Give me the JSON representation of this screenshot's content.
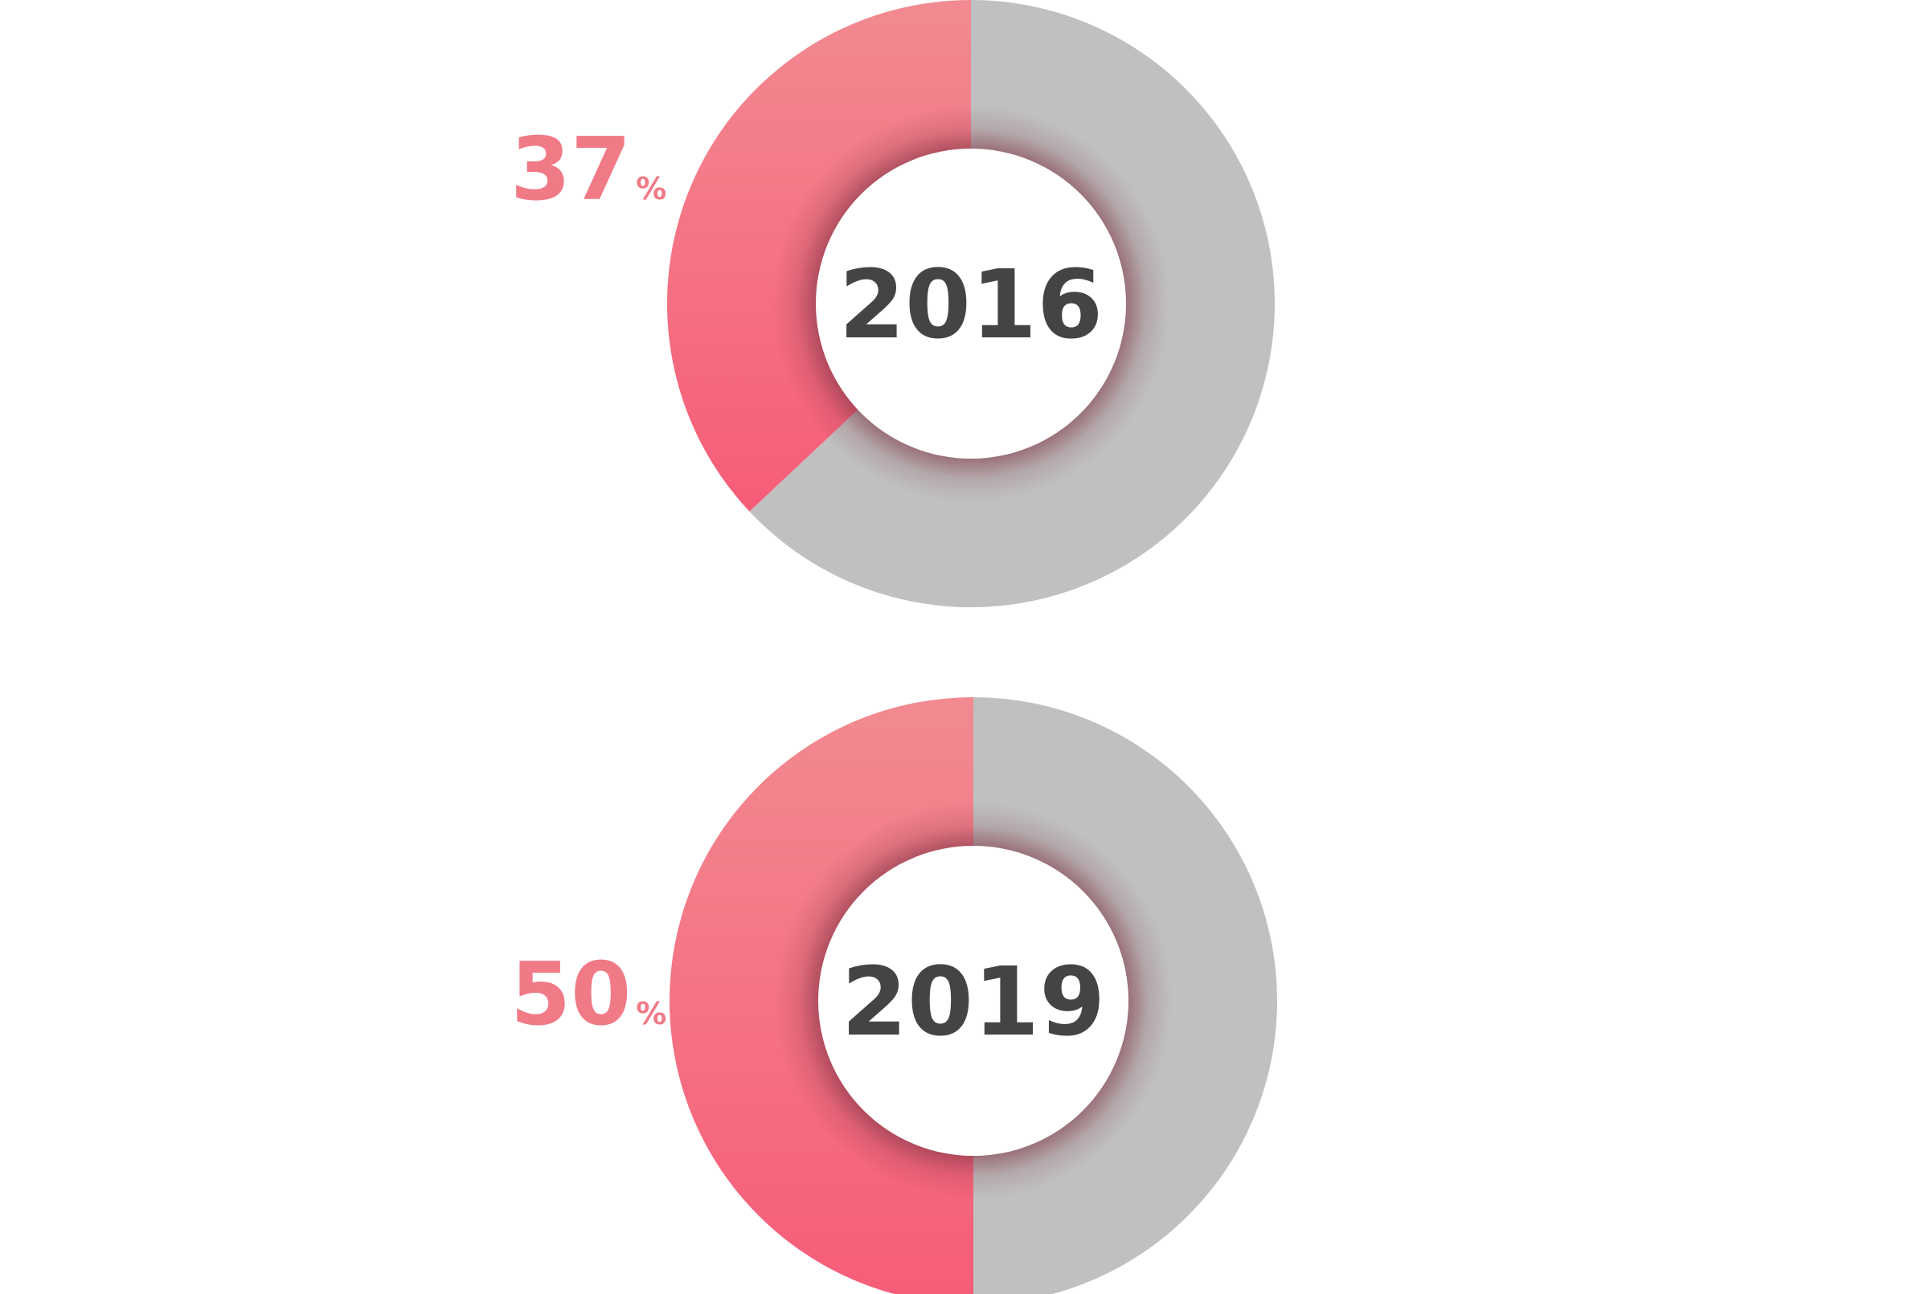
{
  "chart_data": [
    {
      "type": "pie",
      "center_label": "2016",
      "value_label": "37",
      "value_suffix": "%",
      "slices": [
        {
          "value": 37,
          "color": "#f7607a",
          "gradient_light": "#f28a91",
          "gradient_dark": "#f75c78"
        },
        {
          "value": 63,
          "color": "#c0c0c0"
        }
      ]
    },
    {
      "type": "pie",
      "center_label": "2019",
      "value_label": "50",
      "value_suffix": "%",
      "slices": [
        {
          "value": 50,
          "color": "#f7607a",
          "gradient_light": "#f28a91",
          "gradient_dark": "#f75c78"
        },
        {
          "value": 50,
          "color": "#c0c0c0"
        }
      ]
    }
  ],
  "colors": {
    "accent": "#f07a86",
    "rest": "#c0c0c0",
    "year_text": "#444444",
    "background": "#ffffff"
  }
}
